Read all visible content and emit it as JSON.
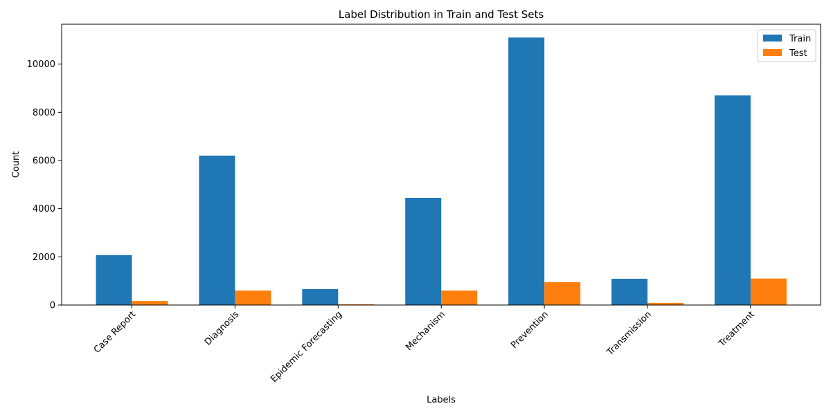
{
  "chart_data": {
    "type": "bar",
    "title": "Label Distribution in Train and Test Sets",
    "xlabel": "Labels",
    "ylabel": "Count",
    "categories": [
      "Case Report",
      "Diagnosis",
      "Epidemic Forecasting",
      "Mechanism",
      "Prevention",
      "Transmission",
      "Treatment"
    ],
    "series": [
      {
        "name": "Train",
        "color": "#1f77b4",
        "values": [
          2070,
          6200,
          660,
          4450,
          11100,
          1090,
          8700
        ]
      },
      {
        "name": "Test",
        "color": "#ff7f0e",
        "values": [
          170,
          600,
          30,
          600,
          950,
          90,
          1100
        ]
      }
    ],
    "ylim": [
      0,
      11655
    ],
    "yticks": [
      0,
      2000,
      4000,
      6000,
      8000,
      10000
    ],
    "ytick_labels": [
      "0",
      "2000",
      "4000",
      "6000",
      "8000",
      "10000"
    ],
    "grid": false,
    "legend_position": "top-right",
    "x_tick_rotation_deg": 45
  }
}
